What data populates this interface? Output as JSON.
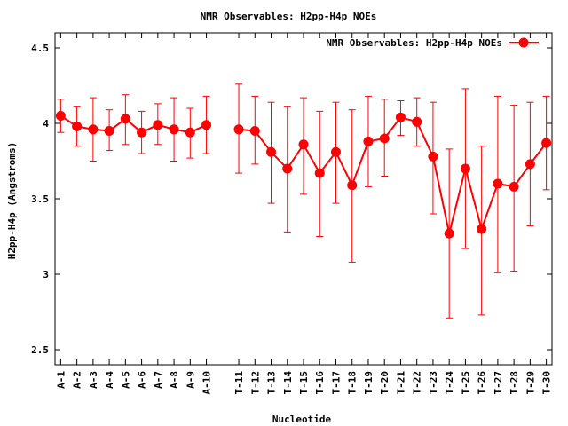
{
  "chart_data": {
    "type": "line",
    "title": "NMR Observables: H2pp-H4p NOEs",
    "xlabel": "Nucleotide",
    "ylabel": "H2pp-H4p (Angstroms)",
    "ylim": [
      2.4,
      4.6
    ],
    "yticks": [
      2.5,
      3,
      3.5,
      4,
      4.5
    ],
    "ytick_labels": [
      "2.5",
      "3",
      "3.5",
      "4",
      "4.5"
    ],
    "legend": {
      "label": "NMR Observables: H2pp-H4p NOEs",
      "position": "top-right"
    },
    "color": "#ff0000",
    "x_positions": [
      1,
      2,
      3,
      4,
      5,
      6,
      7,
      8,
      9,
      10,
      12,
      13,
      14,
      15,
      16,
      17,
      18,
      19,
      20,
      21,
      22,
      23,
      24,
      25,
      26,
      27,
      28,
      29,
      30,
      31
    ],
    "xlim": [
      0.65,
      31.35
    ],
    "categories": [
      "A-1",
      "A-2",
      "A-3",
      "A-4",
      "A-5",
      "A-6",
      "A-7",
      "A-8",
      "A-9",
      "A-10",
      "T-11",
      "T-12",
      "T-13",
      "T-14",
      "T-15",
      "T-16",
      "T-17",
      "T-18",
      "T-19",
      "T-20",
      "T-21",
      "T-22",
      "T-23",
      "T-24",
      "T-25",
      "T-26",
      "T-27",
      "T-28",
      "T-29",
      "T-30"
    ],
    "segments": [
      [
        0,
        9
      ],
      [
        10,
        29
      ]
    ],
    "values": [
      4.05,
      3.98,
      3.96,
      3.95,
      4.03,
      3.94,
      3.99,
      3.96,
      3.94,
      3.99,
      3.96,
      3.95,
      3.81,
      3.7,
      3.86,
      3.67,
      3.81,
      3.59,
      3.88,
      3.9,
      4.04,
      4.01,
      3.78,
      3.27,
      3.7,
      3.3,
      3.6,
      3.58,
      3.73,
      3.87
    ],
    "err_high": [
      4.16,
      4.11,
      4.17,
      4.09,
      4.19,
      4.08,
      4.13,
      4.17,
      4.1,
      4.18,
      4.26,
      4.18,
      4.14,
      4.11,
      4.17,
      4.08,
      4.14,
      4.09,
      4.18,
      4.16,
      4.15,
      4.17,
      4.14,
      3.83,
      4.23,
      3.85,
      4.18,
      4.12,
      4.14,
      4.18
    ],
    "err_low": [
      3.94,
      3.85,
      3.75,
      3.82,
      3.86,
      3.8,
      3.86,
      3.75,
      3.77,
      3.8,
      3.67,
      3.73,
      3.47,
      3.28,
      3.53,
      3.25,
      3.47,
      3.08,
      3.58,
      3.65,
      3.92,
      3.85,
      3.4,
      2.71,
      3.17,
      2.73,
      3.01,
      3.02,
      3.32,
      3.56
    ]
  }
}
